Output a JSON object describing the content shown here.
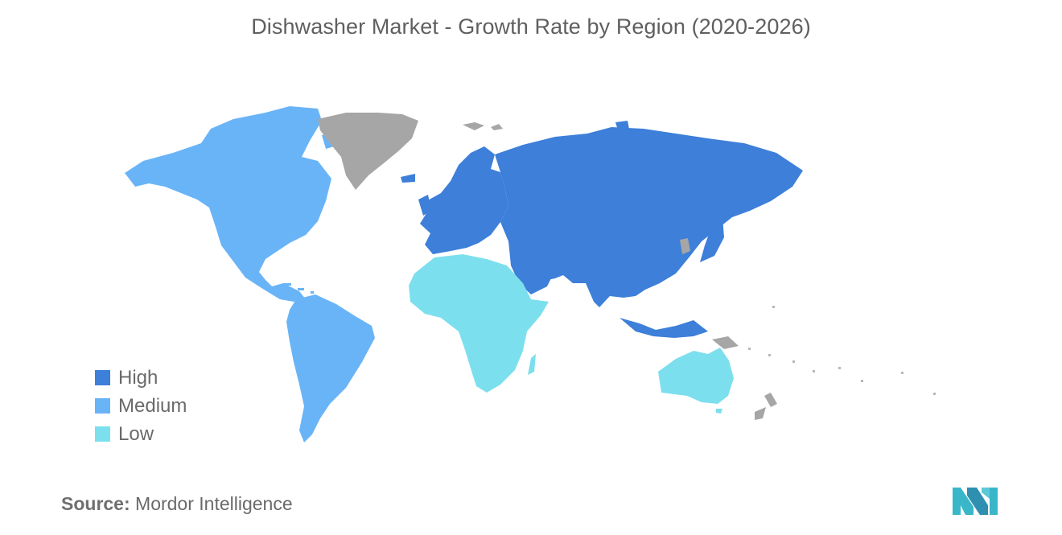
{
  "title": "Dishwasher Market - Growth Rate by Region (2020-2026)",
  "legend": [
    {
      "label": "High",
      "color": "#3d7fd9"
    },
    {
      "label": "Medium",
      "color": "#69b4f7"
    },
    {
      "label": "Low",
      "color": "#7cdfee"
    }
  ],
  "no_data_color": "#a6a6a6",
  "regions": {
    "north_america": "Medium",
    "south_america": "Medium",
    "europe": "High",
    "asia_pacific": "High",
    "middle_east": "High",
    "africa": "Low",
    "australia": "Low",
    "greenland": "no data",
    "new_zealand": "no data"
  },
  "source": {
    "label": "Source:",
    "text": "Mordor Intelligence"
  },
  "logo": {
    "icon": "mordor-intelligence-logo",
    "color": "#3ab6c9"
  }
}
